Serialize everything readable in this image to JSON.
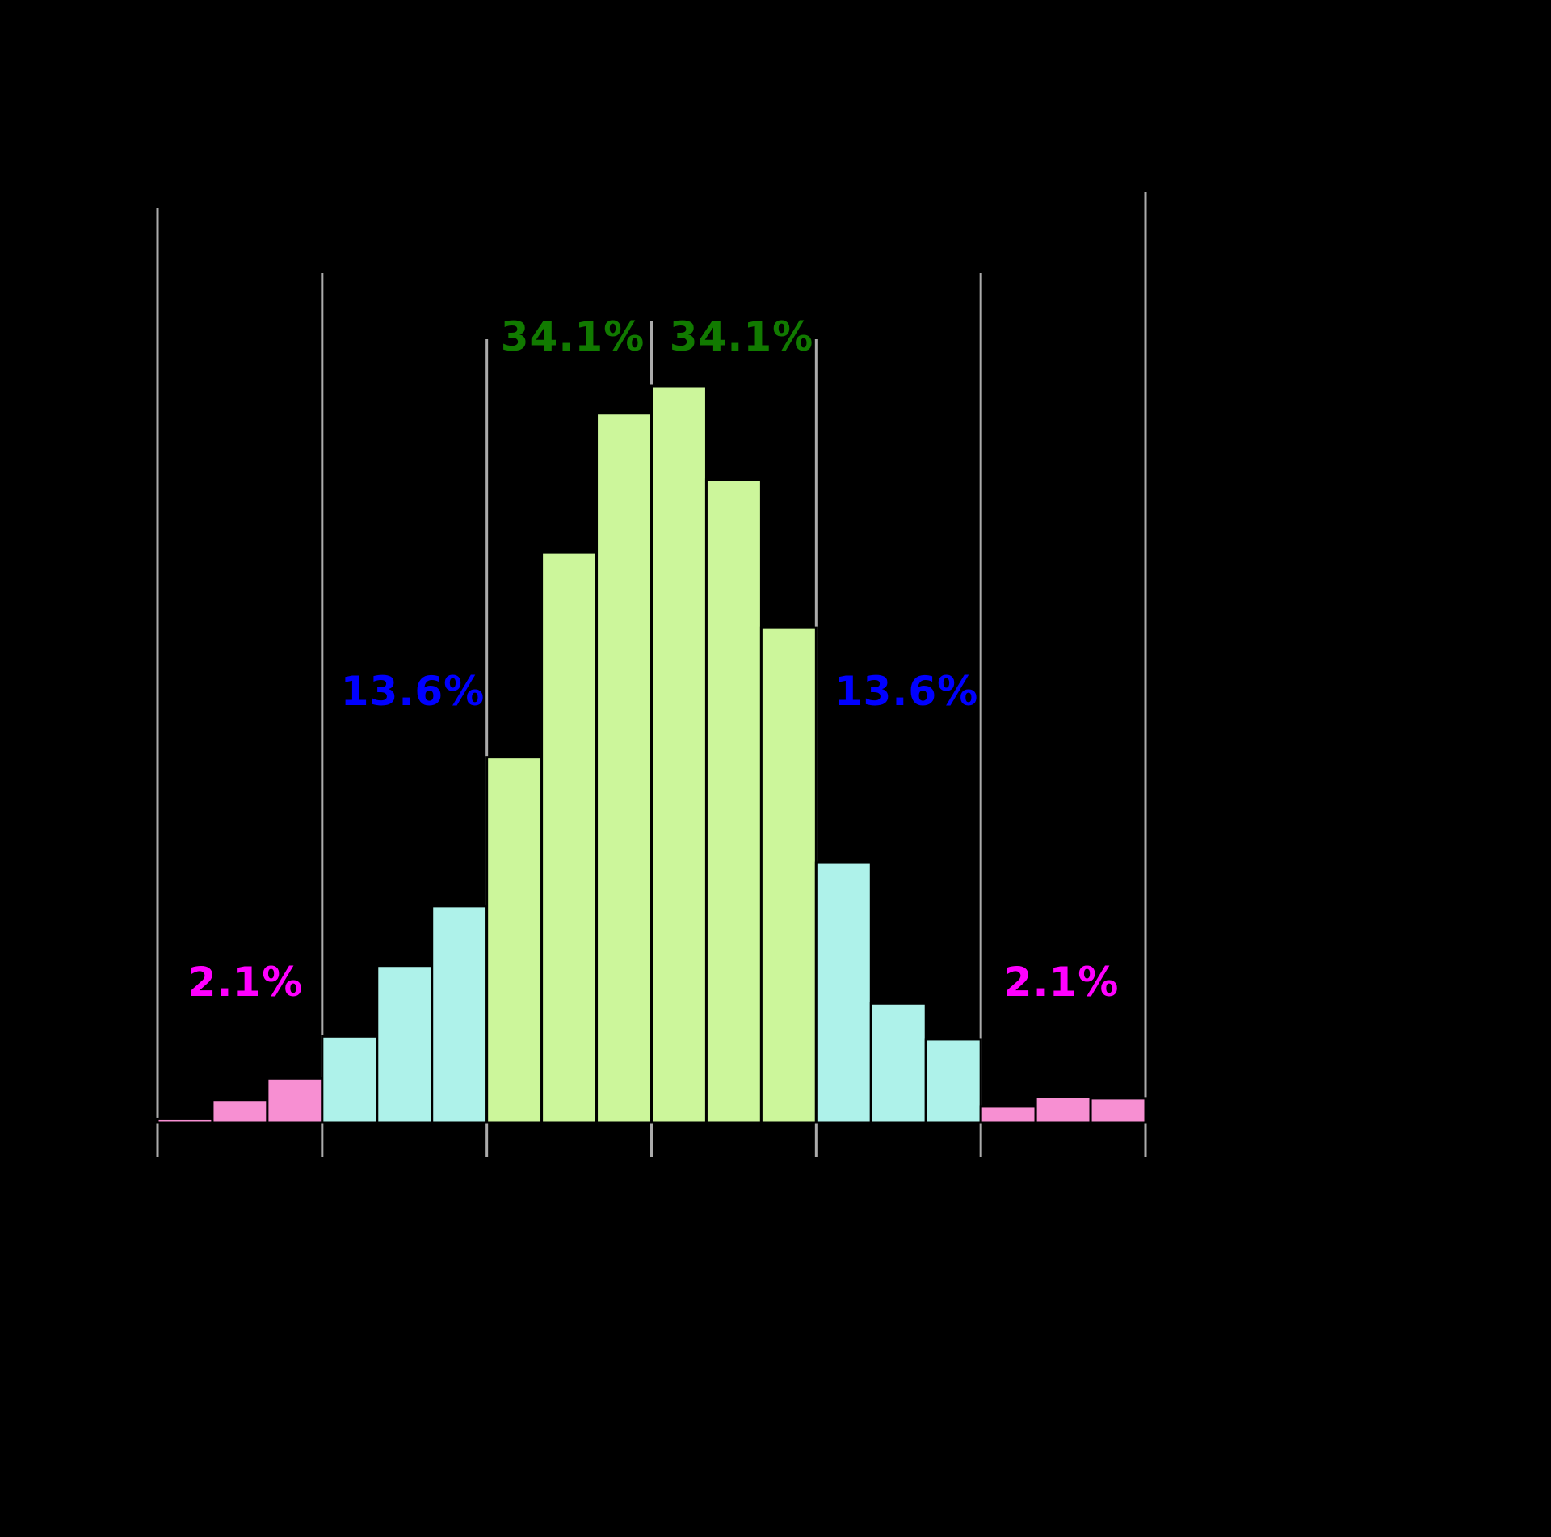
{
  "page": {
    "background": "#000000"
  },
  "chart_data": {
    "type": "bar",
    "subtype": "histogram",
    "title": "",
    "description": "Normal (Gaussian) distribution histogram divided at standard-deviation boundaries on a black background; only the colored region percentage labels, the gray sigma gridlines and the colored bars are visible",
    "x_axis": {
      "range_sigma": [
        -3,
        3
      ],
      "gridlines_at_sigma": [
        -3,
        -2,
        -1,
        0,
        1,
        2,
        3
      ],
      "tick_labels_visible": false
    },
    "y_axis": {
      "visible": false
    },
    "bins": {
      "count": 18,
      "bins_per_sigma": 3,
      "relative_heights_peak100": [
        0.5,
        3.1,
        6.0,
        11.7,
        21.3,
        29.4,
        49.6,
        77.4,
        96.3,
        100,
        87.3,
        67.2,
        35.3,
        16.2,
        11.3,
        2.2,
        3.5,
        3.3
      ],
      "regions": [
        "tail",
        "tail",
        "tail",
        "outer",
        "outer",
        "outer",
        "inner",
        "inner",
        "inner",
        "inner",
        "inner",
        "inner",
        "outer",
        "outer",
        "outer",
        "tail",
        "tail",
        "tail"
      ]
    },
    "region_labels": [
      {
        "text": "34.1%",
        "region": "-1sigma to mean",
        "color_key": "label_green"
      },
      {
        "text": "34.1%",
        "region": "mean to +1sigma",
        "color_key": "label_green"
      },
      {
        "text": "13.6%",
        "region": "-2sigma to -1sigma",
        "color_key": "label_blue"
      },
      {
        "text": "13.6%",
        "region": "+1sigma to +2sigma",
        "color_key": "label_blue"
      },
      {
        "text": "2.1%",
        "region": "-3sigma to -2sigma",
        "color_key": "label_magenta"
      },
      {
        "text": "2.1%",
        "region": "+2sigma to +3sigma",
        "color_key": "label_magenta"
      }
    ],
    "colors": {
      "bar_inner": "#ccf69b",
      "bar_outer": "#aef2ea",
      "bar_tail": "#f78fd2",
      "bar_stroke": "#000000",
      "gridline": "#ababab",
      "label_green": "#117a00",
      "label_blue": "#0000ff",
      "label_magenta": "#ff00ff"
    },
    "legend": null
  }
}
